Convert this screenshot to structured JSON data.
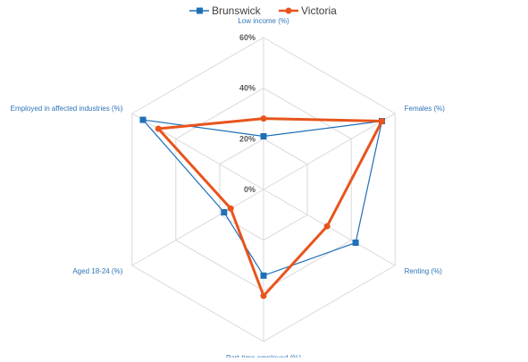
{
  "chart_data": {
    "type": "radar",
    "categories": [
      "Low income (%)",
      "Females (%)",
      "Renting (%)",
      "Part-time employed (%)",
      "Aged 18-24 (%)",
      "Employed in affected industries (%)"
    ],
    "series": [
      {
        "name": "Brunswick",
        "color": "#1f6fb8",
        "marker": "square",
        "values": [
          21,
          54,
          42,
          34,
          18,
          55
        ]
      },
      {
        "name": "Victoria",
        "color": "#e8541c",
        "marker": "circle",
        "values": [
          28,
          54,
          29,
          42,
          15,
          48
        ]
      }
    ],
    "rlim": [
      0,
      60
    ],
    "rticks": [
      0,
      20,
      40,
      60
    ],
    "rtick_labels": [
      "0%",
      "20%",
      "40%",
      "60%"
    ],
    "grid": true,
    "legend_position": "top",
    "label_color": "#2e75b6"
  }
}
